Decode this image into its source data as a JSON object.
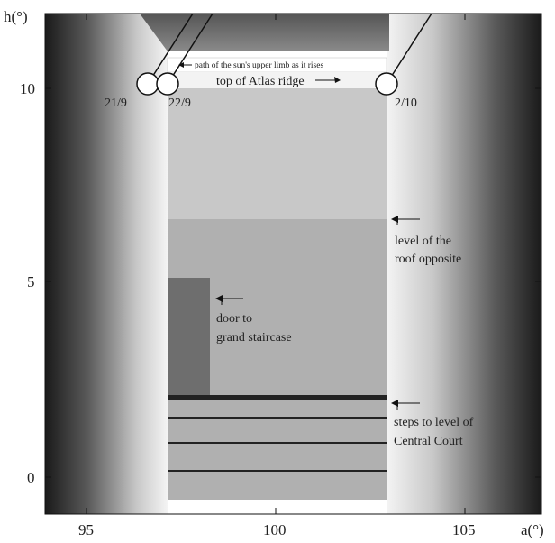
{
  "axes": {
    "x_label": "a(°)",
    "y_label": "h(°)",
    "x_ticks": [
      "95",
      "100",
      "105"
    ],
    "y_ticks": [
      "10",
      "5",
      "0"
    ]
  },
  "sun_positions": [
    {
      "date": "21/9"
    },
    {
      "date": "22/9"
    },
    {
      "date": "2/10"
    }
  ],
  "annotations": {
    "sun_path": "path of the sun's upper limb as it rises",
    "atlas_ridge": "top of Atlas ridge",
    "roof_level": [
      "level of the",
      "roof opposite"
    ],
    "door": [
      "door to",
      "grand staircase"
    ],
    "steps": [
      "steps to level of",
      "Central Court"
    ]
  }
}
